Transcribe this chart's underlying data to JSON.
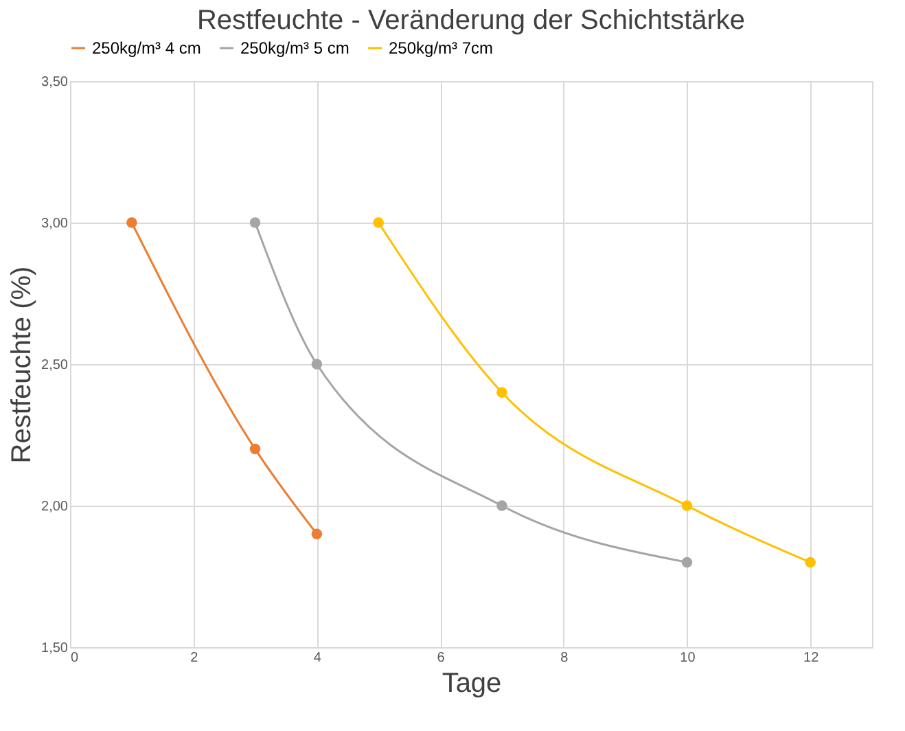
{
  "chart_data": {
    "type": "line",
    "title": "Restfeuchte - Veränderung der Schichtstärke",
    "xlabel": "Tage",
    "ylabel": "Restfeuchte (%)",
    "series": [
      {
        "name": "250kg/m³ 4 cm",
        "color": "#ed7d31",
        "x": [
          1,
          3,
          4
        ],
        "values": [
          3.0,
          2.2,
          1.9
        ]
      },
      {
        "name": "250kg/m³ 5 cm",
        "color": "#a5a5a5",
        "x": [
          3,
          4,
          7,
          10
        ],
        "values": [
          3.0,
          2.5,
          2.0,
          1.8
        ]
      },
      {
        "name": "250kg/m³ 7cm",
        "color": "#ffc000",
        "x": [
          5,
          7,
          10,
          12
        ],
        "values": [
          3.0,
          2.4,
          2.0,
          1.8
        ]
      }
    ],
    "xlim": [
      0,
      13
    ],
    "xticks": [
      0,
      2,
      4,
      6,
      8,
      10,
      12
    ],
    "ylim": [
      1.5,
      3.5
    ],
    "yticks": [
      {
        "value": 1.5,
        "label": "1,50"
      },
      {
        "value": 2.0,
        "label": "2,00"
      },
      {
        "value": 2.5,
        "label": "2,50"
      },
      {
        "value": 3.0,
        "label": "3,00"
      },
      {
        "value": 3.5,
        "label": "3,50"
      }
    ],
    "grid": true,
    "legend": "top",
    "marker": "circle",
    "line_style": "solid"
  }
}
